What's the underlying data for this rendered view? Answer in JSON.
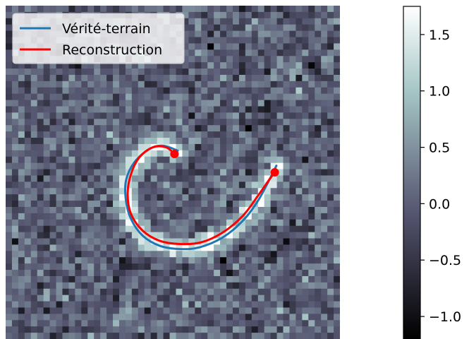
{
  "chart_data": {
    "type": "heatmap",
    "title": "",
    "xlabel": "",
    "ylabel": "",
    "axis": "off",
    "image": {
      "description": "noisy image with a bright curved arc",
      "grid_cols": 53,
      "grid_rows": 53,
      "noise_mean": 0.0,
      "noise_std": 0.33,
      "arc_peak": 1.6
    },
    "colormap": "bone",
    "colorbar": {
      "vmin": -1.2,
      "vmax": 1.75,
      "ticks": [
        -1.0,
        -0.5,
        0.0,
        0.5,
        1.0,
        1.5
      ],
      "tick_labels": [
        "−1.0",
        "−0.5",
        "0.0",
        "0.5",
        "1.0",
        "1.5"
      ]
    },
    "series": [
      {
        "name": "Vérité-terrain",
        "color": "#1f77b4",
        "points": [
          [
            0.515,
            0.435
          ],
          [
            0.47,
            0.42
          ],
          [
            0.43,
            0.43
          ],
          [
            0.385,
            0.47
          ],
          [
            0.36,
            0.525
          ],
          [
            0.36,
            0.585
          ],
          [
            0.375,
            0.64
          ],
          [
            0.41,
            0.69
          ],
          [
            0.46,
            0.72
          ],
          [
            0.52,
            0.73
          ],
          [
            0.58,
            0.725
          ],
          [
            0.65,
            0.695
          ],
          [
            0.71,
            0.645
          ],
          [
            0.755,
            0.585
          ],
          [
            0.79,
            0.52
          ],
          [
            0.81,
            0.48
          ]
        ]
      },
      {
        "name": "Reconstruction",
        "color": "#ff0000",
        "points": [
          [
            0.505,
            0.445
          ],
          [
            0.48,
            0.425
          ],
          [
            0.44,
            0.425
          ],
          [
            0.4,
            0.455
          ],
          [
            0.375,
            0.505
          ],
          [
            0.365,
            0.565
          ],
          [
            0.375,
            0.625
          ],
          [
            0.41,
            0.675
          ],
          [
            0.46,
            0.705
          ],
          [
            0.52,
            0.715
          ],
          [
            0.585,
            0.71
          ],
          [
            0.65,
            0.68
          ],
          [
            0.71,
            0.63
          ],
          [
            0.755,
            0.57
          ],
          [
            0.79,
            0.52
          ],
          [
            0.805,
            0.5
          ]
        ],
        "endpoints": [
          [
            0.505,
            0.445
          ],
          [
            0.805,
            0.5
          ]
        ]
      }
    ],
    "legend": {
      "position": "top-left",
      "entries": [
        "Vérité-terrain",
        "Reconstruction"
      ]
    }
  }
}
